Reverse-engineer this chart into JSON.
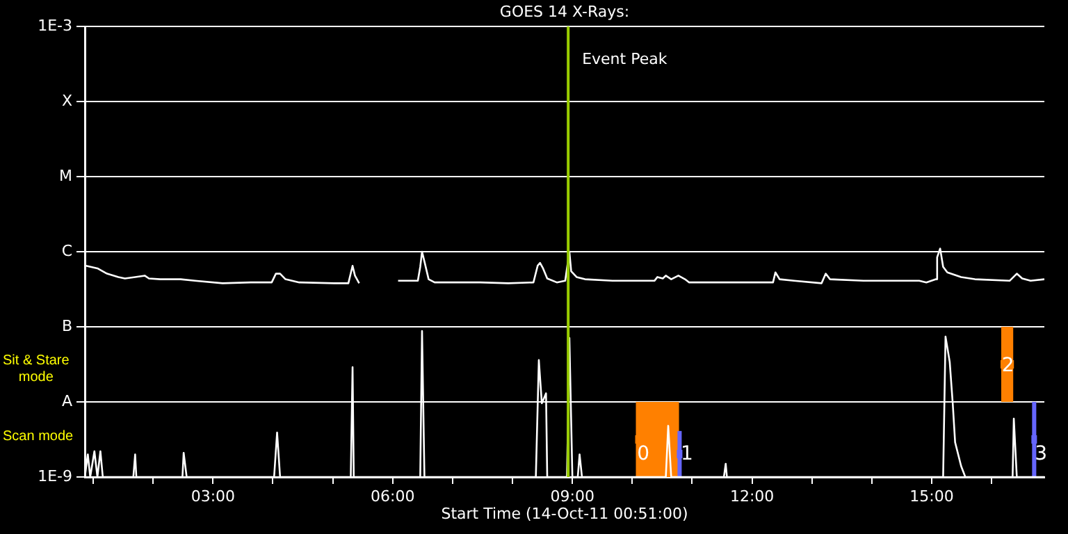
{
  "chart_data": {
    "type": "line",
    "title": "GOES 14 X-Rays:",
    "xlabel": "Start Time (14-Oct-11 00:51:00)",
    "log": true,
    "grid": "y",
    "marker": "none",
    "legend": false,
    "xlim": [
      0.86,
      16.88
    ],
    "xticks": [
      {
        "value": 1,
        "label": null
      },
      {
        "value": 2,
        "label": null
      },
      {
        "value": 3,
        "label": "03:00"
      },
      {
        "value": 4,
        "label": null
      },
      {
        "value": 5,
        "label": null
      },
      {
        "value": 6,
        "label": "06:00"
      },
      {
        "value": 7,
        "label": null
      },
      {
        "value": 8,
        "label": null
      },
      {
        "value": 9,
        "label": "09:00"
      },
      {
        "value": 10,
        "label": null
      },
      {
        "value": 11,
        "label": null
      },
      {
        "value": 12,
        "label": "12:00"
      },
      {
        "value": 13,
        "label": null
      },
      {
        "value": 14,
        "label": null
      },
      {
        "value": 15,
        "label": "15:00"
      },
      {
        "value": 16,
        "label": null
      }
    ],
    "ylim": [
      1e-09,
      0.001
    ],
    "yticks": [
      {
        "value": 1e-09,
        "label": "1E-9"
      },
      {
        "value": 1e-08,
        "label": "A"
      },
      {
        "value": 1e-07,
        "label": "B"
      },
      {
        "value": 1e-06,
        "label": "C"
      },
      {
        "value": 1e-05,
        "label": "M"
      },
      {
        "value": 0.0001,
        "label": "X"
      },
      {
        "value": 0.001,
        "label": "1E-3"
      }
    ],
    "ref_lines": [
      {
        "axis": "x",
        "value": 8.93,
        "label": "Event Peak",
        "color": "#99cc00"
      }
    ],
    "annotations": [
      "Sit & Stare\nmode",
      "Scan mode",
      {
        "text": "0",
        "x": 10.08,
        "y": 2e-09
      },
      {
        "text": "1",
        "x": 10.81,
        "y": 2e-09
      },
      {
        "text": "2",
        "x": 16.17,
        "y": 3e-08
      },
      {
        "text": "3",
        "x": 16.72,
        "y": 2e-09
      }
    ],
    "series": [
      {
        "type": "bar",
        "color": "#ff8000",
        "x": [
          10.42,
          16.26
        ],
        "base": [
          1e-09,
          1e-08
        ],
        "values": [
          9e-09,
          9e-08
        ],
        "xerrors": [
          0.36,
          0.1
        ]
      },
      {
        "type": "bar",
        "color": "#6666ff",
        "x": [
          10.79,
          16.71
        ],
        "base": [
          1e-09,
          1e-09
        ],
        "values": [
          3.1e-09,
          9e-09
        ],
        "xerrors": [
          0.035,
          0.035
        ]
      },
      {
        "color": "#ffffff",
        "x": [
          0.88,
          1.07,
          1.23,
          1.42,
          1.53,
          1.7,
          1.86,
          1.93,
          2.12,
          2.46,
          2.7,
          3.16,
          3.63,
          3.98,
          4.05,
          4.12,
          4.21,
          4.44,
          5.02,
          5.26,
          5.33,
          5.37,
          5.44,
          5.8,
          6.09,
          6.42,
          6.46,
          6.49,
          6.53,
          6.6,
          6.7,
          7.46,
          7.93,
          8.35,
          8.42,
          8.46,
          8.51,
          8.58,
          8.74,
          8.88,
          8.95,
          8.98,
          9.07,
          9.21,
          9.67,
          10.37,
          10.42,
          10.51,
          10.56,
          10.65,
          10.77,
          10.88,
          10.95,
          12.0,
          12.35,
          12.39,
          12.46,
          12.7,
          13.16,
          13.23,
          13.3,
          13.86,
          14.79,
          14.91,
          15.07,
          15.09,
          15.14,
          15.19,
          15.26,
          15.49,
          15.72,
          16.3,
          16.42,
          16.51,
          16.65,
          16.88
        ],
        "values": [
          6.5e-07,
          6e-07,
          5.1e-07,
          4.6e-07,
          4.4e-07,
          4.6e-07,
          4.8e-07,
          4.4e-07,
          4.3e-07,
          4.3e-07,
          4.1e-07,
          3.8e-07,
          3.9e-07,
          3.9e-07,
          5.1e-07,
          5.1e-07,
          4.3e-07,
          3.9e-07,
          3.8e-07,
          3.8e-07,
          6.5e-07,
          4.8e-07,
          3.8e-07,
          null,
          4.1e-07,
          4.1e-07,
          6.3e-07,
          1e-06,
          7.4e-07,
          4.3e-07,
          3.9e-07,
          3.9e-07,
          3.8e-07,
          3.9e-07,
          6.5e-07,
          7.1e-07,
          6e-07,
          4.4e-07,
          3.9e-07,
          4.1e-07,
          1e-06,
          5.5e-07,
          4.6e-07,
          4.3e-07,
          4.1e-07,
          4.1e-07,
          4.6e-07,
          4.4e-07,
          4.8e-07,
          4.3e-07,
          4.8e-07,
          4.3e-07,
          3.9e-07,
          3.9e-07,
          3.9e-07,
          5.3e-07,
          4.3e-07,
          4.1e-07,
          3.8e-07,
          5.1e-07,
          4.3e-07,
          4.1e-07,
          4.1e-07,
          3.9e-07,
          4.3e-07,
          8.4e-07,
          1.1e-06,
          6.3e-07,
          5.3e-07,
          4.6e-07,
          4.3e-07,
          4.1e-07,
          5.1e-07,
          4.4e-07,
          4.1e-07,
          4.3e-07
        ]
      },
      {
        "color": "#ffffff",
        "x": [
          0.86,
          0.91,
          0.95,
          1.02,
          1.07,
          1.12,
          1.16,
          1.67,
          1.7,
          1.72,
          2.49,
          2.51,
          2.56,
          4.02,
          4.07,
          4.12,
          5.3,
          5.33,
          5.35,
          6.46,
          6.49,
          6.53,
          8.39,
          8.44,
          8.49,
          8.56,
          8.58,
          8.91,
          8.95,
          9.0,
          9.09,
          9.12,
          9.16,
          10.56,
          10.6,
          10.65,
          11.53,
          11.56,
          11.58,
          15.19,
          15.23,
          15.3,
          15.35,
          15.39,
          15.49,
          15.56,
          16.35,
          16.37,
          16.42,
          16.88
        ],
        "values": [
          1e-09,
          2e-09,
          1e-09,
          2.2e-09,
          1e-09,
          2.2e-09,
          1e-09,
          1e-09,
          2e-09,
          1e-09,
          1e-09,
          2.1e-09,
          1e-09,
          1e-09,
          3.9e-09,
          1e-09,
          1e-09,
          2.9e-08,
          1e-09,
          1e-09,
          8.8e-08,
          1e-09,
          1e-09,
          3.6e-08,
          9.6e-09,
          1.3e-08,
          1e-09,
          1e-09,
          7.1e-08,
          1e-09,
          1e-09,
          2e-09,
          1e-09,
          1e-09,
          4.8e-09,
          1e-09,
          1e-09,
          1.5e-09,
          1e-09,
          1e-09,
          7.4e-08,
          3.4e-08,
          9.6e-09,
          2.9e-09,
          1.4e-09,
          1e-09,
          1e-09,
          6e-09,
          1e-09,
          1e-09
        ]
      }
    ]
  }
}
